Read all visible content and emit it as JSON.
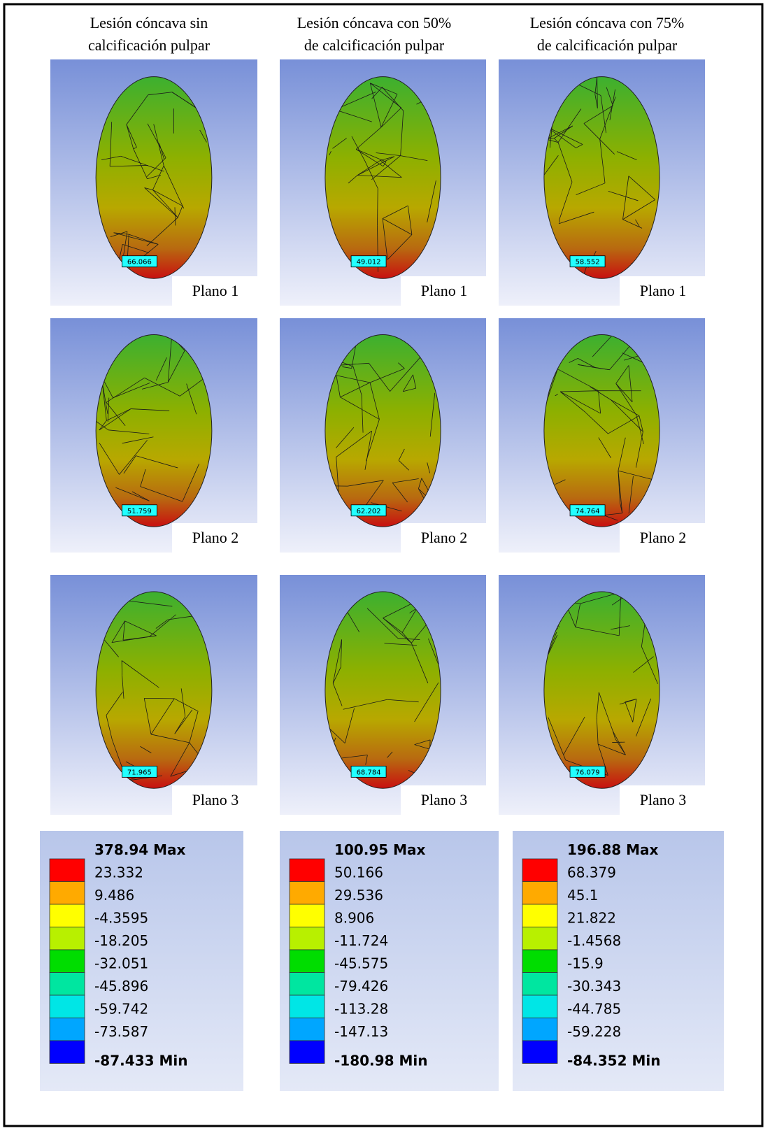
{
  "headers": [
    [
      "Lesión cóncava sin",
      "calcificación pulpar"
    ],
    [
      "Lesión cóncava con  50%",
      "de calcificación pulpar"
    ],
    [
      "Lesión cóncava con  75%",
      "de calcificación pulpar"
    ]
  ],
  "panels": [
    [
      {
        "plane": "Plano 1",
        "probe": "66.066"
      },
      {
        "plane": "Plano 1",
        "probe": "49.012"
      },
      {
        "plane": "Plano 1",
        "probe": "58.552"
      }
    ],
    [
      {
        "plane": "Plano 2",
        "probe": "51.759"
      },
      {
        "plane": "Plano 2",
        "probe": "62.202"
      },
      {
        "plane": "Plano 2",
        "probe": "74.764"
      }
    ],
    [
      {
        "plane": "Plano 3",
        "probe": "71.965"
      },
      {
        "plane": "Plano 3",
        "probe": "68.784"
      },
      {
        "plane": "Plano 3",
        "probe": "76.079"
      }
    ]
  ],
  "legend_colors": [
    "#ff0000",
    "#ffaa00",
    "#ffff00",
    "#b8f000",
    "#00dd00",
    "#00e6a0",
    "#00e6e6",
    "#00a6ff",
    "#0000ff"
  ],
  "legends": [
    [
      "378.94 Max",
      "23.332",
      "9.486",
      "-4.3595",
      "-18.205",
      "-32.051",
      "-45.896",
      "-59.742",
      "-73.587",
      "-87.433 Min"
    ],
    [
      "100.95 Max",
      "50.166",
      "29.536",
      "8.906",
      "-11.724",
      "-45.575",
      "-79.426",
      "-113.28",
      "-147.13",
      "-180.98 Min"
    ],
    [
      "196.88 Max",
      "68.379",
      "45.1",
      "21.822",
      "-1.4568",
      "-15.9",
      "-30.343",
      "-44.785",
      "-59.228",
      "-84.352 Min"
    ]
  ]
}
